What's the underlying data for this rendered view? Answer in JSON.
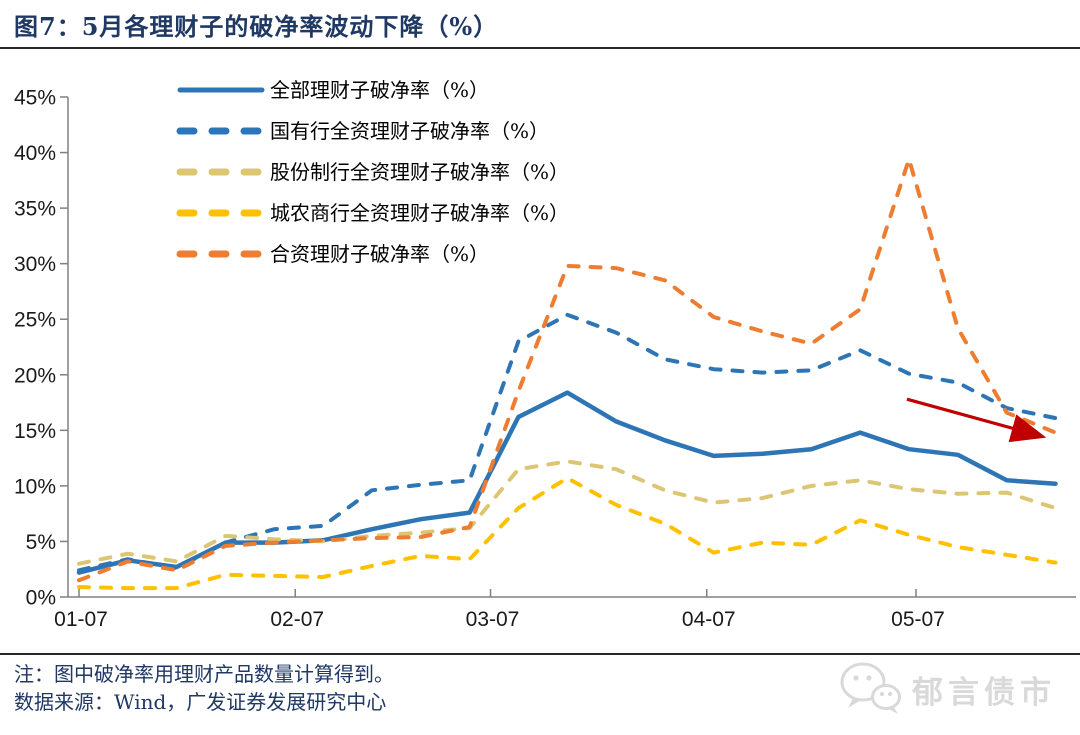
{
  "header": {
    "title": "图7：5月各理财子的破净率波动下降（%）"
  },
  "chart_data": {
    "type": "line",
    "title": "图7：5月各理财子的破净率波动下降（%）",
    "xlabel": "",
    "ylabel": "",
    "ylim": [
      0,
      45
    ],
    "y_tick_labels": [
      "0%",
      "5%",
      "10%",
      "15%",
      "20%",
      "25%",
      "30%",
      "35%",
      "40%",
      "45%"
    ],
    "y_tick_values": [
      0,
      5,
      10,
      15,
      20,
      25,
      30,
      35,
      40,
      45
    ],
    "x_tick_labels": [
      "01-07",
      "02-07",
      "03-07",
      "04-07",
      "05-07"
    ],
    "x_tick_days": [
      0,
      31,
      59,
      90,
      120
    ],
    "x_total_days": 140,
    "grid": false,
    "legend_position": "top-left-inside",
    "axis_color": "#808080",
    "tick_label_color": "#1A1A1A",
    "x": [
      "01-07",
      "01-14",
      "01-21",
      "01-28",
      "02-04",
      "02-11",
      "02-18",
      "02-25",
      "03-04",
      "03-11",
      "03-18",
      "03-25",
      "04-01",
      "04-08",
      "04-15",
      "04-22",
      "04-29",
      "05-06",
      "05-13",
      "05-20",
      "05-27"
    ],
    "series": [
      {
        "name": "全部理财子破净率（%）",
        "key": "all-wmc",
        "style": "solid",
        "color": "#2E75B6",
        "values": [
          2.2,
          3.3,
          2.7,
          4.9,
          4.9,
          5.1,
          6.1,
          7.0,
          7.6,
          16.2,
          18.4,
          15.8,
          14.1,
          12.7,
          12.9,
          13.3,
          14.8,
          13.3,
          12.8,
          10.5,
          10.2
        ]
      },
      {
        "name": "国有行全资理财子破净率（%）",
        "key": "state-owned-bank",
        "style": "dashed",
        "color": "#2E75B6",
        "values": [
          2.4,
          3.4,
          2.6,
          4.9,
          6.1,
          6.4,
          9.6,
          10.1,
          10.5,
          23.0,
          25.4,
          23.8,
          21.4,
          20.5,
          20.2,
          20.4,
          22.2,
          20.1,
          19.3,
          17.0,
          16.1
        ]
      },
      {
        "name": "股份制行全资理财子破净率（%）",
        "key": "joint-stock-bank",
        "style": "dashed",
        "color": "#DCC674",
        "values": [
          3.0,
          3.9,
          3.2,
          5.5,
          5.2,
          5.0,
          5.5,
          5.8,
          6.2,
          11.5,
          12.2,
          11.5,
          9.6,
          8.5,
          8.9,
          10.0,
          10.5,
          9.7,
          9.3,
          9.4,
          8.0
        ]
      },
      {
        "name": "城农商行全资理财子破净率（%）",
        "key": "city-rural-bank",
        "style": "dashed",
        "color": "#FFC000",
        "values": [
          0.9,
          0.8,
          0.8,
          2.0,
          1.9,
          1.8,
          2.8,
          3.7,
          3.4,
          8.0,
          10.7,
          8.3,
          6.6,
          4.0,
          4.9,
          4.7,
          6.9,
          5.6,
          4.5,
          3.8,
          3.1
        ]
      },
      {
        "name": "合资理财子破净率（%）",
        "key": "joint-venture",
        "style": "dashed",
        "color": "#ED7D31",
        "values": [
          1.5,
          3.2,
          2.4,
          4.6,
          4.9,
          5.1,
          5.3,
          5.4,
          6.3,
          18.5,
          29.8,
          29.6,
          28.5,
          25.2,
          23.9,
          22.8,
          25.9,
          39.4,
          24.2,
          16.6,
          14.8
        ]
      }
    ],
    "annotation_arrow": {
      "color": "#C00000",
      "from": {
        "day": 118.7,
        "value": 17.8
      },
      "to": {
        "day": 137.8,
        "value": 14.5
      }
    }
  },
  "footer": {
    "note": "注：图中破净率用理财产品数量计算得到。",
    "source": "数据来源：Wind，广发证券发展研究中心"
  },
  "logo": {
    "text": "郁言债市",
    "icon": "wechat-icon"
  }
}
